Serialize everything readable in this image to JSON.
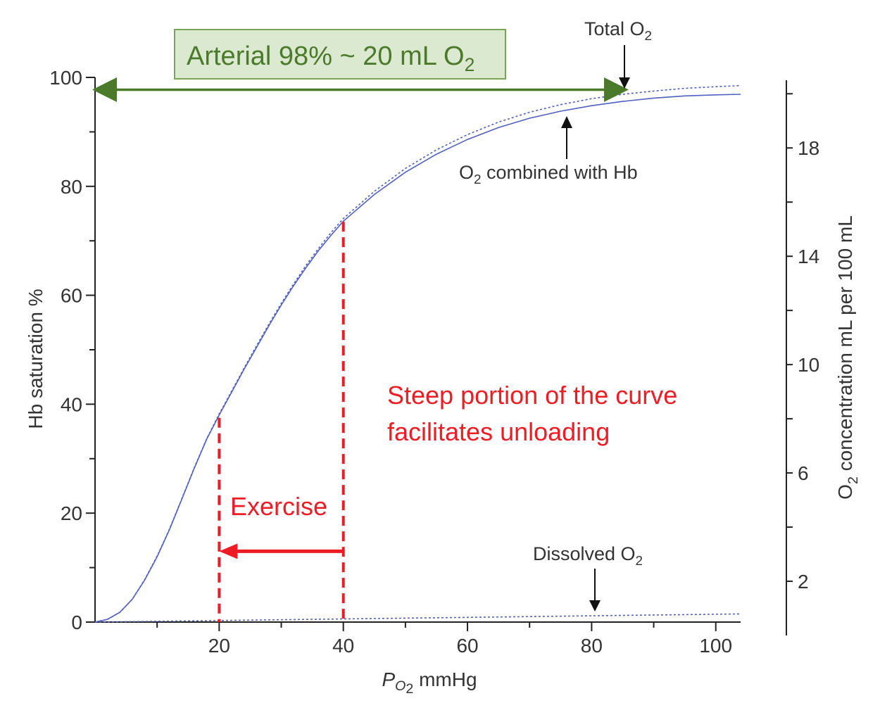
{
  "chart_data": {
    "type": "line",
    "title": "",
    "xlabel": {
      "main": "P",
      "sub": "O",
      "sub_num": "2",
      "unit": " mmHg"
    },
    "ylabel_left": "Hb saturation %",
    "ylabel_right": {
      "pre": "O",
      "sub": "2",
      "post": " concentration mL per 100 mL"
    },
    "xlim": [
      0,
      104
    ],
    "ylim_left": [
      0,
      100
    ],
    "x_ticks": [
      20,
      40,
      60,
      80,
      100
    ],
    "x_tick_labels": [
      "20",
      "40",
      "60",
      "80",
      "100"
    ],
    "y_ticks_left": [
      0,
      20,
      40,
      60,
      80,
      100
    ],
    "y_tick_labels_left": [
      "0",
      "20",
      "40",
      "60",
      "80",
      "100"
    ],
    "ylim_right": [
      0,
      20.5
    ],
    "y_ticks_right": [
      2,
      6,
      10,
      14,
      18
    ],
    "y_tick_labels_right": [
      "2",
      "6",
      "10",
      "14",
      "18"
    ],
    "series": [
      {
        "style": "solid",
        "color": "#5060c0",
        "x": [
          0,
          2,
          4,
          6,
          8,
          10,
          12,
          14,
          16,
          18,
          20,
          22,
          24,
          26,
          28,
          30,
          32,
          34,
          36,
          38,
          40,
          45,
          50,
          55,
          60,
          65,
          70,
          75,
          80,
          85,
          90,
          95,
          100,
          104
        ],
        "y": [
          0,
          0.5,
          1.8,
          4.2,
          7.7,
          12.0,
          17.0,
          22.6,
          28.3,
          33.6,
          38.0,
          42.2,
          46.4,
          50.4,
          54.4,
          58.2,
          61.8,
          65.1,
          68.2,
          71.0,
          73.6,
          78.5,
          82.6,
          85.9,
          88.6,
          90.8,
          92.5,
          93.8,
          94.8,
          95.6,
          96.2,
          96.6,
          96.8,
          96.9
        ]
      },
      {
        "style": "dotted",
        "color": "#5060c0",
        "x": [
          0,
          2,
          4,
          6,
          8,
          10,
          12,
          14,
          16,
          18,
          20,
          22,
          24,
          26,
          28,
          30,
          32,
          34,
          36,
          38,
          40,
          45,
          50,
          55,
          60,
          65,
          70,
          75,
          80,
          85,
          90,
          95,
          100,
          104
        ],
        "y": [
          0,
          0.5,
          1.8,
          4.2,
          7.8,
          12.1,
          17.1,
          22.7,
          28.4,
          33.7,
          38.2,
          42.4,
          46.6,
          50.7,
          54.7,
          58.5,
          62.1,
          65.5,
          68.6,
          71.5,
          74.1,
          79.1,
          83.3,
          86.7,
          89.5,
          91.8,
          93.6,
          95.0,
          96.1,
          96.9,
          97.5,
          98.0,
          98.3,
          98.5
        ]
      },
      {
        "style": "dotted",
        "color": "#5060c0",
        "x": [
          0,
          104
        ],
        "y": [
          0,
          1.5
        ]
      }
    ],
    "vlines": [
      {
        "x": 20,
        "y_top": 37.5,
        "color": "#ee1c25"
      },
      {
        "x": 40,
        "y_top": 73.5,
        "color": "#ee1c25"
      }
    ],
    "exercise_arrow": {
      "x_from": 40,
      "x_to": 20,
      "y": 13,
      "color": "#ee1c25"
    },
    "green_arrow": {
      "x_from": 0,
      "x_to": 85.5,
      "y": 98,
      "color": "#4a7a2a"
    },
    "annotations": {
      "arterial": {
        "pre": "Arterial 98% ~ 20 mL O",
        "sub": "2"
      },
      "total_o2": {
        "pre": "Total O",
        "sub": "2"
      },
      "combined": {
        "pre": "O",
        "sub": "2",
        "post": " combined with Hb"
      },
      "dissolved": {
        "pre": "Dissolved O",
        "sub": "2"
      },
      "exercise": "Exercise",
      "steep_line1": "Steep portion of the curve",
      "steep_line2": "facilitates unloading"
    },
    "colors": {
      "curve": "#5060c0",
      "red": "#ee1c25",
      "green_text": "#4a7a2a",
      "green_box_fill": "#dbe9d0",
      "green_box_stroke": "#7aa45a",
      "axis": "#222222"
    }
  }
}
